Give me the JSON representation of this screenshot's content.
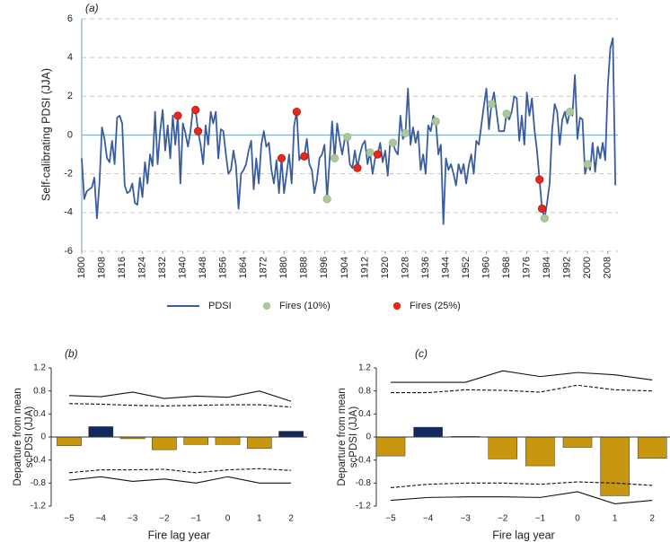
{
  "chart_data": [
    {
      "type": "line",
      "panel_label": "(a)",
      "ylabel": "Self-calibrating PDSI (JJA)",
      "xlim": [
        1800,
        2012
      ],
      "ylim": [
        -6,
        6
      ],
      "yticks": [
        -6,
        -4,
        -2,
        0,
        2,
        4,
        6
      ],
      "grid": true,
      "xticks": [
        1800,
        1808,
        1816,
        1824,
        1832,
        1840,
        1848,
        1856,
        1864,
        1872,
        1880,
        1888,
        1896,
        1904,
        1912,
        1920,
        1928,
        1936,
        1944,
        1952,
        1960,
        1968,
        1976,
        1984,
        1992,
        2000,
        2008
      ],
      "series": [
        {
          "name": "PDSI",
          "type": "line",
          "color": "#3a5da0",
          "x": [
            1800,
            1801,
            1802,
            1803,
            1804,
            1805,
            1806,
            1807,
            1808,
            1809,
            1810,
            1811,
            1812,
            1813,
            1814,
            1815,
            1816,
            1817,
            1818,
            1819,
            1820,
            1821,
            1822,
            1823,
            1824,
            1825,
            1826,
            1827,
            1828,
            1829,
            1830,
            1831,
            1832,
            1833,
            1834,
            1835,
            1836,
            1837,
            1838,
            1839,
            1840,
            1841,
            1842,
            1843,
            1844,
            1845,
            1846,
            1847,
            1848,
            1849,
            1850,
            1851,
            1852,
            1853,
            1854,
            1855,
            1856,
            1857,
            1858,
            1859,
            1860,
            1861,
            1862,
            1863,
            1864,
            1865,
            1866,
            1867,
            1868,
            1869,
            1870,
            1871,
            1872,
            1873,
            1874,
            1875,
            1876,
            1877,
            1878,
            1879,
            1880,
            1881,
            1882,
            1883,
            1884,
            1885,
            1886,
            1887,
            1888,
            1889,
            1890,
            1891,
            1892,
            1893,
            1894,
            1895,
            1896,
            1897,
            1898,
            1899,
            1900,
            1901,
            1902,
            1903,
            1904,
            1905,
            1906,
            1907,
            1908,
            1909,
            1910,
            1911,
            1912,
            1913,
            1914,
            1915,
            1916,
            1917,
            1918,
            1919,
            1920,
            1921,
            1922,
            1923,
            1924,
            1925,
            1926,
            1927,
            1928,
            1929,
            1930,
            1931,
            1932,
            1933,
            1934,
            1935,
            1936,
            1937,
            1938,
            1939,
            1940,
            1941,
            1942,
            1943,
            1944,
            1945,
            1946,
            1947,
            1948,
            1949,
            1950,
            1951,
            1952,
            1953,
            1954,
            1955,
            1956,
            1957,
            1958,
            1959,
            1960,
            1961,
            1962,
            1963,
            1964,
            1965,
            1966,
            1967,
            1968,
            1969,
            1970,
            1971,
            1972,
            1973,
            1974,
            1975,
            1976,
            1977,
            1978,
            1979,
            1980,
            1981,
            1982,
            1983,
            1984,
            1985,
            1986,
            1987,
            1988,
            1989,
            1990,
            1991,
            1992,
            1993,
            1994,
            1995,
            1996,
            1997,
            1998,
            1999,
            2000,
            2001,
            2002,
            2003,
            2004,
            2005,
            2006,
            2007,
            2008,
            2009,
            2010,
            2011
          ],
          "values": [
            -1.2,
            -3.3,
            -2.9,
            -2.8,
            -2.7,
            -2.2,
            -4.3,
            -2.5,
            0.4,
            -0.2,
            -1.2,
            -1.4,
            -0.3,
            -1.5,
            0.9,
            1.0,
            0.6,
            -2.6,
            -3.0,
            -2.9,
            -2.5,
            -3.5,
            -3.6,
            -2.2,
            -3.2,
            -1.4,
            -2.5,
            -1.0,
            -1.6,
            1.2,
            -1.5,
            0.2,
            1.3,
            -0.8,
            0.5,
            -1.2,
            1.0,
            -0.5,
            1.0,
            -2.5,
            0.6,
            0.1,
            -0.6,
            0.2,
            1.4,
            1.3,
            0.2,
            -0.5,
            -1.5,
            0.5,
            -0.5,
            1.2,
            0.6,
            1.2,
            -1.2,
            0.3,
            0.2,
            -1.0,
            -2.0,
            -1.8,
            -0.8,
            -1.6,
            -3.8,
            -2.0,
            -1.8,
            -1.5,
            -0.8,
            -0.3,
            -2.8,
            -1.2,
            -2.5,
            -0.5,
            0.2,
            -0.6,
            -0.4,
            -1.8,
            -2.5,
            -1.3,
            -3.0,
            -1.2,
            -3.0,
            -2.0,
            -1.0,
            -2.5,
            0.5,
            1.2,
            -1.3,
            -1.0,
            -1.1,
            -0.2,
            -1.5,
            -1.8,
            -3.0,
            -2.3,
            -1.2,
            -1.0,
            -0.5,
            -3.3,
            -1.3,
            0.7,
            -1.2,
            0.6,
            -0.3,
            -1.0,
            -0.2,
            -0.1,
            -1.5,
            -1.7,
            -0.8,
            -1.7,
            -1.0,
            -0.5,
            -0.3,
            -1.5,
            -0.9,
            -2.0,
            -1.2,
            -1.0,
            -0.4,
            -1.4,
            -0.8,
            -2.1,
            -0.3,
            -0.4,
            -0.8,
            -1.0,
            1.0,
            -0.2,
            0.1,
            2.4,
            -0.5,
            0.4,
            -0.4,
            0.2,
            -1.8,
            -1.0,
            -2.0,
            0.5,
            0.2,
            1.0,
            0.7,
            -1.0,
            -0.5,
            -4.6,
            -1.2,
            -1.8,
            -1.5,
            -2.0,
            -2.6,
            -1.5,
            -2.0,
            -1.5,
            -2.5,
            -1.6,
            -1.0,
            -2.0,
            -0.3,
            -0.5,
            0.5,
            1.5,
            2.4,
            0.3,
            1.6,
            2.2,
            1.2,
            0.2,
            0.2,
            0.2,
            1.1,
            0.8,
            1.2,
            2.0,
            1.9,
            -0.3,
            1.0,
            -0.5,
            2.2,
            1.0,
            1.9,
            0.3,
            -0.8,
            -2.3,
            -3.8,
            -4.3,
            -3.5,
            -2.5,
            0.3,
            1.6,
            1.2,
            -0.5,
            0.8,
            1.2,
            0.6,
            1.2,
            1.0,
            3.1,
            -0.2,
            0.9,
            0.8,
            -2.0,
            -1.5,
            -1.8,
            -0.4,
            -1.9,
            -0.6,
            -1.2,
            -0.4,
            -1.3,
            2.5,
            4.5,
            5.0,
            -2.6
          ]
        },
        {
          "name": "Fires (10%)",
          "type": "scatter",
          "color": "#a9c99b",
          "x": [
            1897,
            1900,
            1905,
            1914,
            1923,
            1928,
            1940,
            1962,
            1968,
            1983,
            1993,
            2000
          ],
          "values": [
            -3.3,
            -1.2,
            -0.1,
            -0.9,
            -0.4,
            0.1,
            0.7,
            1.6,
            1.1,
            -4.3,
            1.2,
            -1.5
          ]
        },
        {
          "name": "Fires (25%)",
          "type": "scatter",
          "color": "#e8281c",
          "x": [
            1838,
            1845,
            1846,
            1879,
            1885,
            1888,
            1909,
            1917,
            1981,
            1982
          ],
          "values": [
            1.0,
            1.3,
            0.2,
            -1.2,
            1.2,
            -1.1,
            -1.7,
            -1.0,
            -2.3,
            -3.8
          ]
        }
      ]
    },
    {
      "type": "bar",
      "panel_label": "(b)",
      "xlabel": "Fire lag year",
      "ylabel": [
        "Departure from mean",
        "scPDSI (JJA)"
      ],
      "categories": [
        "−5",
        "−4",
        "−3",
        "−2",
        "−1",
        "0",
        "1",
        "2"
      ],
      "values": [
        -0.15,
        0.18,
        -0.03,
        -0.22,
        -0.13,
        -0.13,
        -0.2,
        0.1
      ],
      "colors": [
        "#c8970f",
        "#10295e",
        "#c8970f",
        "#c8970f",
        "#c8970f",
        "#c8970f",
        "#c8970f",
        "#10295e"
      ],
      "ylim": [
        -1.2,
        1.2
      ],
      "yticks": [
        1.2,
        0.8,
        0.4,
        0,
        -0.4,
        -0.8,
        -1.2
      ],
      "lines": [
        {
          "style": "solid",
          "values": [
            0.72,
            0.7,
            0.78,
            0.67,
            0.71,
            0.69,
            0.8,
            0.62
          ]
        },
        {
          "style": "dashed",
          "values": [
            0.58,
            0.57,
            0.55,
            0.54,
            0.55,
            0.56,
            0.56,
            0.52
          ]
        },
        {
          "style": "dashed",
          "values": [
            -0.62,
            -0.57,
            -0.57,
            -0.56,
            -0.62,
            -0.57,
            -0.55,
            -0.58
          ]
        },
        {
          "style": "solid",
          "values": [
            -0.75,
            -0.69,
            -0.77,
            -0.73,
            -0.8,
            -0.69,
            -0.8,
            -0.8
          ]
        }
      ]
    },
    {
      "type": "bar",
      "panel_label": "(c)",
      "xlabel": "Fire lag year",
      "ylabel": [
        "Departure from mean",
        "scPDSI (JJA)"
      ],
      "categories": [
        "−5",
        "−4",
        "−3",
        "−2",
        "−1",
        "0",
        "1",
        "2"
      ],
      "values": [
        -0.33,
        0.17,
        0.01,
        -0.38,
        -0.5,
        -0.18,
        -1.02,
        -0.37
      ],
      "colors": [
        "#c8970f",
        "#10295e",
        "#c8970f",
        "#c8970f",
        "#c8970f",
        "#c8970f",
        "#c8970f",
        "#c8970f"
      ],
      "ylim": [
        -1.2,
        1.2
      ],
      "yticks": [
        1.2,
        0.8,
        0.4,
        0,
        -0.4,
        -0.8,
        -1.2
      ],
      "lines": [
        {
          "style": "solid",
          "values": [
            0.95,
            0.95,
            0.95,
            1.15,
            1.05,
            1.12,
            1.08,
            0.99
          ]
        },
        {
          "style": "dashed",
          "values": [
            0.77,
            0.77,
            0.82,
            0.81,
            0.78,
            0.9,
            0.82,
            0.8
          ]
        },
        {
          "style": "dashed",
          "values": [
            -0.88,
            -0.82,
            -0.8,
            -0.8,
            -0.82,
            -0.78,
            -0.8,
            -0.84
          ]
        },
        {
          "style": "solid",
          "values": [
            -1.1,
            -1.05,
            -1.04,
            -1.04,
            -1.05,
            -0.95,
            -1.16,
            -1.1
          ]
        }
      ]
    }
  ]
}
